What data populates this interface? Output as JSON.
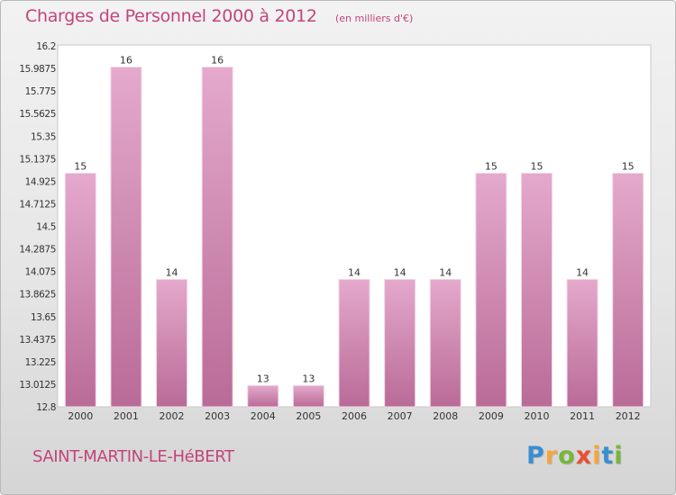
{
  "header": {
    "title": "Charges de Personnel 2000 à 2012",
    "subtitle": "(en milliers d'€)"
  },
  "footer": {
    "commune": "SAINT-MARTIN-LE-HéBERT",
    "logo_text": "Proxiti"
  },
  "colors": {
    "bar_top": "#e4a9cc",
    "bar_bottom": "#b96b97",
    "text_accent": "#c2457a",
    "logo": [
      "#3a8ed0",
      "#f2a73c",
      "#76b73b",
      "#e8502f",
      "#f2a73c",
      "#3a8ed0",
      "#76b73b"
    ]
  },
  "chart_data": {
    "type": "bar",
    "title": "Charges de Personnel 2000 à 2012",
    "subtitle": "(en milliers d'€)",
    "categories": [
      "2000",
      "2001",
      "2002",
      "2003",
      "2004",
      "2005",
      "2006",
      "2007",
      "2008",
      "2009",
      "2010",
      "2011",
      "2012"
    ],
    "values": [
      15,
      16,
      14,
      16,
      13,
      13,
      14,
      14,
      14,
      15,
      15,
      14,
      15
    ],
    "value_labels": [
      "15",
      "16",
      "14",
      "16",
      "13",
      "13",
      "14",
      "14",
      "14",
      "15",
      "15",
      "14",
      "15"
    ],
    "ylim": [
      12.8,
      16.2
    ],
    "yticks": [
      "12.8",
      "13.0125",
      "13.225",
      "13.4375",
      "13.65",
      "13.8625",
      "14.075",
      "14.2875",
      "14.5",
      "14.7125",
      "14.925",
      "15.1375",
      "15.35",
      "15.5625",
      "15.775",
      "15.9875",
      "16.2"
    ],
    "grid": false
  }
}
